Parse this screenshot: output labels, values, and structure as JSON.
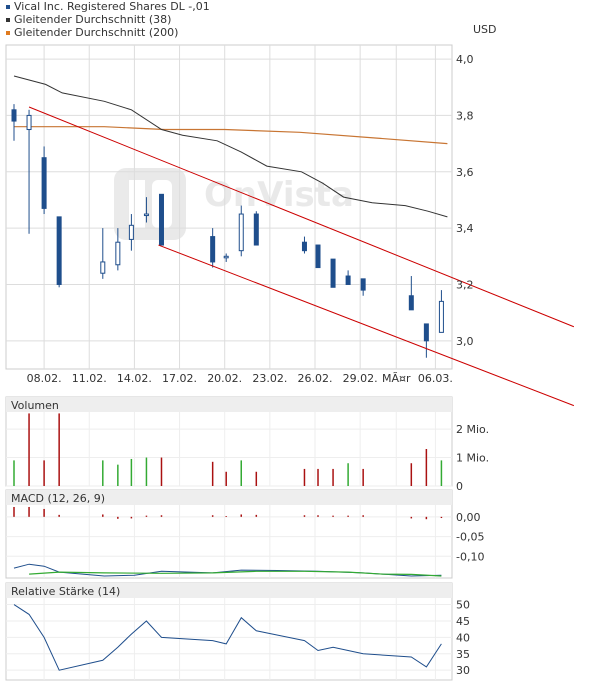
{
  "legend": [
    {
      "label": "Vical Inc. Registered Shares DL -,01",
      "color": "#1f4e8c"
    },
    {
      "label": "Gleitender Durchschnitt (38)",
      "color": "#333333"
    },
    {
      "label": "Gleitender Durchschnitt (200)",
      "color": "#e07b1f"
    }
  ],
  "watermark": "OnVista",
  "chart_data": [
    {
      "type": "candlestick",
      "ylabel": "USD",
      "ylim": [
        2.9,
        4.05
      ],
      "y_ticks": [
        "4,0",
        "3,8",
        "3,6",
        "3,4",
        "3,2",
        "3,0"
      ],
      "y_tick_values": [
        4.0,
        3.8,
        3.6,
        3.4,
        3.2,
        3.0
      ],
      "x_ticks": [
        "08.02.",
        "11.02.",
        "14.02.",
        "17.02.",
        "20.02.",
        "23.02.",
        "26.02.",
        "29.02.",
        "MÃ¤r",
        "06.03."
      ],
      "x_tick_days": [
        2,
        5,
        8,
        11,
        14,
        17,
        20,
        23,
        25.4,
        28
      ],
      "grid": true,
      "candles": [
        {
          "d": 0.0,
          "o": 3.82,
          "h": 3.84,
          "l": 3.71,
          "c": 3.78
        },
        {
          "d": 1.0,
          "o": 3.75,
          "h": 3.82,
          "l": 3.38,
          "c": 3.8
        },
        {
          "d": 2.0,
          "o": 3.65,
          "h": 3.69,
          "l": 3.45,
          "c": 3.47
        },
        {
          "d": 3.0,
          "o": 3.44,
          "h": 3.44,
          "l": 3.19,
          "c": 3.2
        },
        {
          "d": 5.9,
          "o": 3.24,
          "h": 3.4,
          "l": 3.22,
          "c": 3.28
        },
        {
          "d": 6.9,
          "o": 3.27,
          "h": 3.4,
          "l": 3.25,
          "c": 3.35
        },
        {
          "d": 7.8,
          "o": 3.36,
          "h": 3.45,
          "l": 3.32,
          "c": 3.41
        },
        {
          "d": 8.8,
          "o": 3.45,
          "h": 3.51,
          "l": 3.42,
          "c": 3.45
        },
        {
          "d": 9.8,
          "o": 3.52,
          "h": 3.52,
          "l": 3.34,
          "c": 3.34
        },
        {
          "d": 13.2,
          "o": 3.37,
          "h": 3.4,
          "l": 3.26,
          "c": 3.28
        },
        {
          "d": 14.1,
          "o": 3.3,
          "h": 3.31,
          "l": 3.28,
          "c": 3.3
        },
        {
          "d": 15.1,
          "o": 3.32,
          "h": 3.48,
          "l": 3.3,
          "c": 3.45
        },
        {
          "d": 16.1,
          "o": 3.45,
          "h": 3.46,
          "l": 3.34,
          "c": 3.34
        },
        {
          "d": 19.3,
          "o": 3.35,
          "h": 3.37,
          "l": 3.31,
          "c": 3.32
        },
        {
          "d": 20.2,
          "o": 3.34,
          "h": 3.34,
          "l": 3.26,
          "c": 3.26
        },
        {
          "d": 21.2,
          "o": 3.29,
          "h": 3.29,
          "l": 3.19,
          "c": 3.19
        },
        {
          "d": 22.2,
          "o": 3.23,
          "h": 3.25,
          "l": 3.2,
          "c": 3.2
        },
        {
          "d": 23.2,
          "o": 3.22,
          "h": 3.22,
          "l": 3.16,
          "c": 3.18
        },
        {
          "d": 26.4,
          "o": 3.16,
          "h": 3.23,
          "l": 3.11,
          "c": 3.11
        },
        {
          "d": 27.4,
          "o": 3.06,
          "h": 3.06,
          "l": 2.94,
          "c": 3.0
        },
        {
          "d": 28.4,
          "o": 3.03,
          "h": 3.18,
          "l": 3.03,
          "c": 3.14
        }
      ],
      "ma38": [
        [
          0,
          3.94
        ],
        [
          2.1,
          3.91
        ],
        [
          3.2,
          3.88
        ],
        [
          6.0,
          3.85
        ],
        [
          7.8,
          3.82
        ],
        [
          9.8,
          3.75
        ],
        [
          11.2,
          3.73
        ],
        [
          13.5,
          3.71
        ],
        [
          15.1,
          3.67
        ],
        [
          16.8,
          3.62
        ],
        [
          19.1,
          3.6
        ],
        [
          20.5,
          3.56
        ],
        [
          21.9,
          3.51
        ],
        [
          23.8,
          3.49
        ],
        [
          26.0,
          3.48
        ],
        [
          27.5,
          3.46
        ],
        [
          28.8,
          3.44
        ]
      ],
      "ma200": [
        [
          0,
          3.76
        ],
        [
          6.0,
          3.76
        ],
        [
          10.0,
          3.75
        ],
        [
          14.0,
          3.75
        ],
        [
          19.0,
          3.74
        ],
        [
          24.0,
          3.72
        ],
        [
          28.8,
          3.7
        ]
      ],
      "channel_upper": [
        [
          1.0,
          3.83
        ],
        [
          37.2,
          3.05
        ]
      ],
      "channel_lower": [
        [
          9.6,
          3.34
        ],
        [
          37.2,
          2.77
        ]
      ],
      "colors": {
        "candle": "#1f4e8c",
        "ma38": "#333333",
        "ma200": "#c87533",
        "channel": "#cc0000",
        "grid": "#dddddd"
      }
    },
    {
      "type": "bar",
      "title": "Volumen",
      "y_ticks": [
        "2 Mio.",
        "1 Mio.",
        "0"
      ],
      "y_tick_values": [
        2,
        1,
        0
      ],
      "ylim": [
        0,
        2.6
      ],
      "bars": [
        {
          "d": 0.0,
          "v": 0.9,
          "up": true
        },
        {
          "d": 1.0,
          "v": 2.55,
          "up": false
        },
        {
          "d": 2.0,
          "v": 0.9,
          "up": false
        },
        {
          "d": 3.0,
          "v": 2.55,
          "up": false
        },
        {
          "d": 5.9,
          "v": 0.9,
          "up": true
        },
        {
          "d": 6.9,
          "v": 0.75,
          "up": true
        },
        {
          "d": 7.8,
          "v": 0.95,
          "up": true
        },
        {
          "d": 8.8,
          "v": 1.0,
          "up": true
        },
        {
          "d": 9.8,
          "v": 1.0,
          "up": false
        },
        {
          "d": 13.2,
          "v": 0.85,
          "up": false
        },
        {
          "d": 14.1,
          "v": 0.5,
          "up": false
        },
        {
          "d": 15.1,
          "v": 0.9,
          "up": true
        },
        {
          "d": 16.1,
          "v": 0.5,
          "up": false
        },
        {
          "d": 19.3,
          "v": 0.6,
          "up": false
        },
        {
          "d": 20.2,
          "v": 0.6,
          "up": false
        },
        {
          "d": 21.2,
          "v": 0.6,
          "up": false
        },
        {
          "d": 22.2,
          "v": 0.8,
          "up": true
        },
        {
          "d": 23.2,
          "v": 0.6,
          "up": false
        },
        {
          "d": 26.4,
          "v": 0.8,
          "up": false
        },
        {
          "d": 27.4,
          "v": 1.3,
          "up": false
        },
        {
          "d": 28.4,
          "v": 0.9,
          "up": true
        }
      ],
      "colors": {
        "up": "#33aa33",
        "down": "#aa1111"
      }
    },
    {
      "type": "line",
      "title": "MACD (12, 26, 9)",
      "y_ticks": [
        "0,00",
        "-0,05",
        "-0,10"
      ],
      "y_tick_values": [
        0.0,
        -0.05,
        -0.1
      ],
      "ylim": [
        -0.155,
        0.03
      ],
      "histogram": [
        [
          0.0,
          0.025
        ],
        [
          1.0,
          0.025
        ],
        [
          2.0,
          0.02
        ],
        [
          3.0,
          0.005
        ],
        [
          5.9,
          0.006
        ],
        [
          6.9,
          -0.005
        ],
        [
          7.8,
          -0.004
        ],
        [
          8.8,
          0.003
        ],
        [
          9.8,
          0.004
        ],
        [
          13.2,
          0.004
        ],
        [
          14.1,
          0.002
        ],
        [
          15.1,
          0.006
        ],
        [
          16.1,
          0.005
        ],
        [
          19.3,
          0.004
        ],
        [
          20.2,
          0.004
        ],
        [
          21.2,
          0.003
        ],
        [
          22.2,
          0.003
        ],
        [
          23.2,
          0.004
        ],
        [
          26.4,
          -0.004
        ],
        [
          27.4,
          -0.006
        ],
        [
          28.4,
          -0.003
        ]
      ],
      "macd": [
        [
          0,
          -0.13
        ],
        [
          1.0,
          -0.12
        ],
        [
          2.0,
          -0.125
        ],
        [
          3.0,
          -0.14
        ],
        [
          6.0,
          -0.15
        ],
        [
          8.0,
          -0.148
        ],
        [
          9.8,
          -0.138
        ],
        [
          13.2,
          -0.142
        ],
        [
          15.1,
          -0.135
        ],
        [
          17.5,
          -0.136
        ],
        [
          20.2,
          -0.138
        ],
        [
          23.2,
          -0.142
        ],
        [
          26.4,
          -0.15
        ],
        [
          28.4,
          -0.148
        ]
      ],
      "signal": [
        [
          1.0,
          -0.145
        ],
        [
          3.0,
          -0.14
        ],
        [
          6.0,
          -0.142
        ],
        [
          9.8,
          -0.143
        ],
        [
          13.2,
          -0.142
        ],
        [
          16.1,
          -0.138
        ],
        [
          19.3,
          -0.138
        ],
        [
          22.2,
          -0.14
        ],
        [
          24.5,
          -0.145
        ],
        [
          26.4,
          -0.146
        ],
        [
          28.4,
          -0.15
        ]
      ],
      "colors": {
        "macd": "#1f4e8c",
        "signal": "#33aa33",
        "hist": "#aa1111"
      }
    },
    {
      "type": "line",
      "title": "Relative Stärke (14)",
      "y_ticks": [
        "50",
        "45",
        "40",
        "35",
        "30"
      ],
      "y_tick_values": [
        50,
        45,
        40,
        35,
        30
      ],
      "ylim": [
        27,
        52
      ],
      "values": [
        [
          0,
          50
        ],
        [
          1.0,
          47
        ],
        [
          2.0,
          40
        ],
        [
          3.0,
          30
        ],
        [
          5.9,
          33
        ],
        [
          6.9,
          37
        ],
        [
          7.8,
          41
        ],
        [
          8.8,
          45
        ],
        [
          9.8,
          40
        ],
        [
          13.2,
          39
        ],
        [
          14.1,
          38
        ],
        [
          15.1,
          46
        ],
        [
          16.1,
          42
        ],
        [
          19.3,
          39
        ],
        [
          20.2,
          36
        ],
        [
          21.2,
          37
        ],
        [
          22.2,
          36
        ],
        [
          23.2,
          35
        ],
        [
          26.4,
          34
        ],
        [
          27.4,
          31
        ],
        [
          28.4,
          38
        ]
      ],
      "colors": {
        "line": "#1f4e8c"
      }
    }
  ]
}
